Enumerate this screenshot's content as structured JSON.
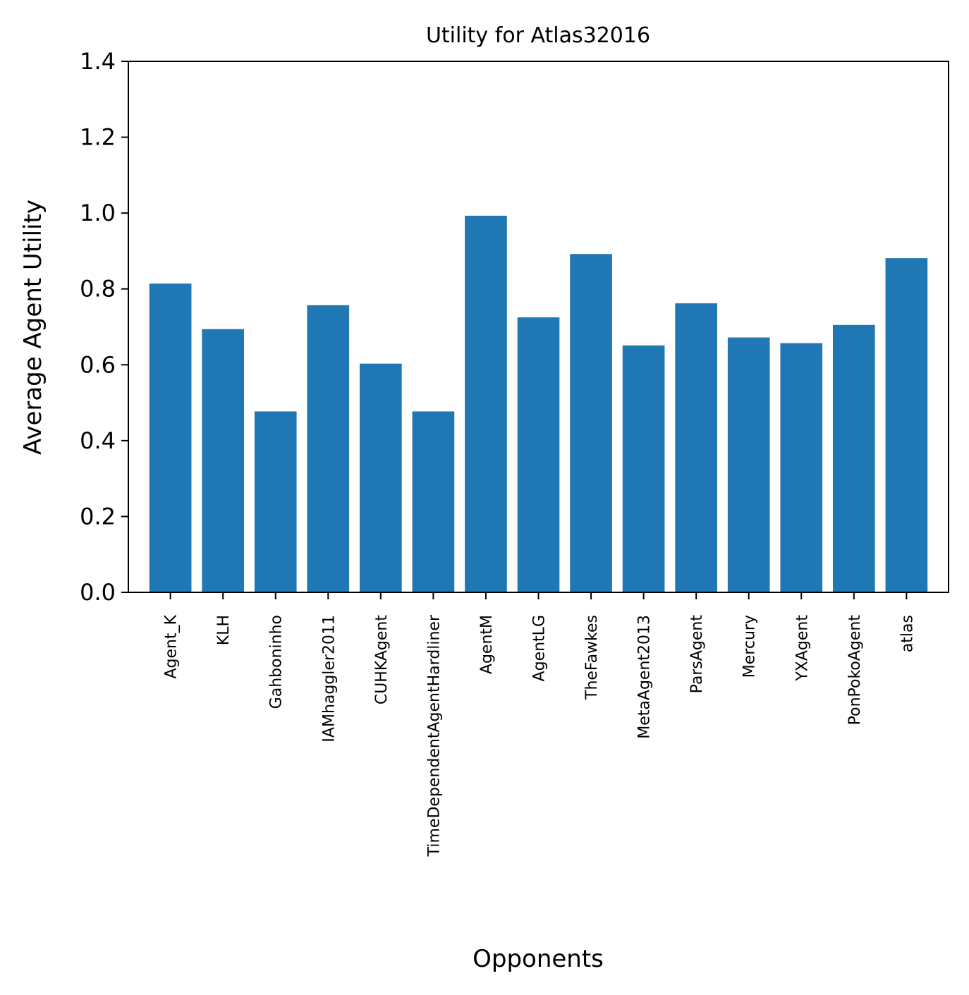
{
  "chart_data": {
    "type": "bar",
    "title": "Utility for Atlas32016",
    "xlabel": "Opponents",
    "ylabel": "Average Agent Utility",
    "ylim": [
      0,
      1.4
    ],
    "yticks": [
      "0.0",
      "0.2",
      "0.4",
      "0.6",
      "0.8",
      "1.0",
      "1.2",
      "1.4"
    ],
    "categories": [
      "Agent_K",
      "KLH",
      "Gahboninho",
      "IAMhaggler2011",
      "CUHKAgent",
      "TimeDependentAgentHardliner",
      "AgentM",
      "AgentLG",
      "TheFawkes",
      "MetaAgent2013",
      "ParsAgent",
      "Mercury",
      "YXAgent",
      "PonPokoAgent",
      "atlas"
    ],
    "values": [
      0.814,
      0.694,
      0.477,
      0.757,
      0.603,
      0.477,
      0.993,
      0.725,
      0.892,
      0.651,
      0.762,
      0.672,
      0.657,
      0.705,
      0.881
    ],
    "bar_color": "#1f77b4",
    "grid": false,
    "legend": "none"
  }
}
